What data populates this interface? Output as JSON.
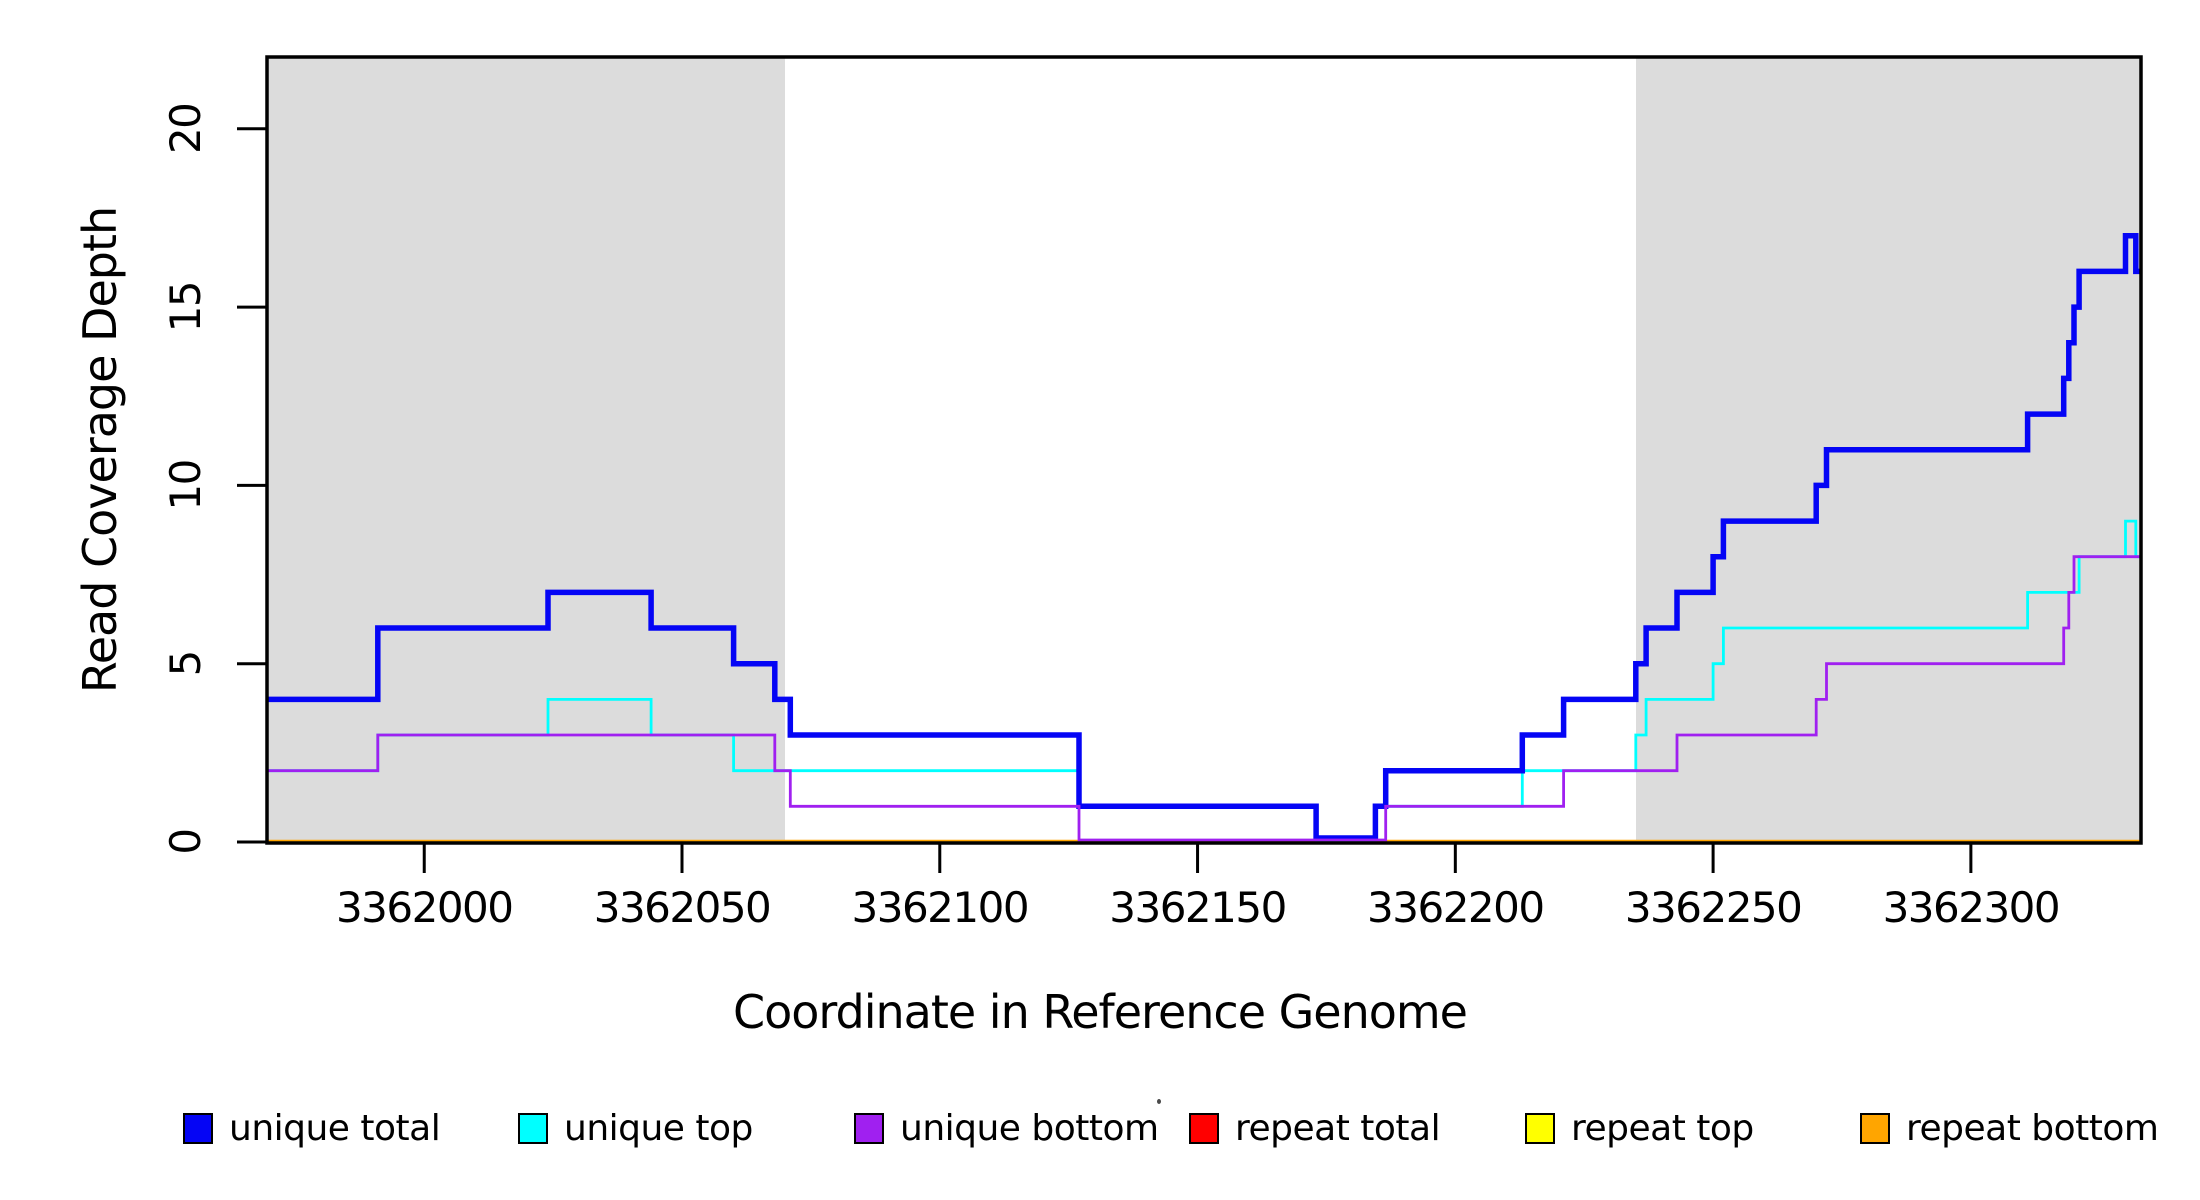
{
  "chart_data": {
    "type": "line",
    "subtype": "step-coverage",
    "title": "",
    "xlabel": "Coordinate in Reference Genome",
    "ylabel": "Read Coverage Depth",
    "xlim": [
      3361969.5,
      3362333
    ],
    "ylim": [
      0,
      22
    ],
    "grid": false,
    "x_ticks": [
      3362000,
      3362050,
      3362100,
      3362150,
      3362200,
      3362250,
      3362300
    ],
    "y_ticks": [
      0,
      5,
      10,
      15,
      20
    ],
    "shaded_regions": [
      {
        "name": "repeat-flank-left",
        "x0": 3361969.5,
        "x1": 3362070,
        "color": "#dcdcdc"
      },
      {
        "name": "repeat-flank-right",
        "x0": 3362235,
        "x1": 3362333,
        "color": "#dcdcdc"
      }
    ],
    "series": [
      {
        "name": "repeat total",
        "color": "#ff0000",
        "width": 3,
        "zero_dy": 0,
        "points": [
          [
            3361969.5,
            0
          ]
        ]
      },
      {
        "name": "repeat top",
        "color": "#ffff00",
        "width": 3,
        "zero_dy": 0,
        "points": [
          [
            3361969.5,
            0
          ]
        ]
      },
      {
        "name": "repeat bottom",
        "color": "#ffa500",
        "width": 4.5,
        "zero_dy": 0,
        "points": [
          [
            3361969.5,
            0
          ]
        ]
      },
      {
        "name": "unique top",
        "color": "#00ffff",
        "width": 2.8,
        "zero_dy": -2,
        "points": [
          [
            3361969.5,
            2
          ],
          [
            3361991,
            3
          ],
          [
            3362024,
            4
          ],
          [
            3362044,
            3
          ],
          [
            3362060,
            2
          ],
          [
            3362127,
            1
          ],
          [
            3362173,
            0
          ],
          [
            3362184.5,
            1
          ],
          [
            3362213,
            2
          ],
          [
            3362235,
            3
          ],
          [
            3362237,
            4
          ],
          [
            3362250,
            5
          ],
          [
            3362252,
            6
          ],
          [
            3362311,
            7
          ],
          [
            3362321,
            8
          ],
          [
            3362330,
            9
          ],
          [
            3362332,
            8
          ]
        ]
      },
      {
        "name": "unique total",
        "color": "#0505f5",
        "width": 5.5,
        "zero_dy": -4,
        "points": [
          [
            3361969.5,
            4
          ],
          [
            3361991,
            6
          ],
          [
            3362024,
            7
          ],
          [
            3362044,
            6
          ],
          [
            3362060,
            5
          ],
          [
            3362068,
            4
          ],
          [
            3362071,
            3
          ],
          [
            3362127,
            1
          ],
          [
            3362173,
            0
          ],
          [
            3362184.5,
            1
          ],
          [
            3362186.5,
            2
          ],
          [
            3362213,
            3
          ],
          [
            3362221,
            4
          ],
          [
            3362235,
            5
          ],
          [
            3362237,
            6
          ],
          [
            3362243,
            7
          ],
          [
            3362250,
            8
          ],
          [
            3362252,
            9
          ],
          [
            3362270,
            10
          ],
          [
            3362272,
            11
          ],
          [
            3362311,
            12
          ],
          [
            3362318,
            13
          ],
          [
            3362319,
            14
          ],
          [
            3362320,
            15
          ],
          [
            3362321,
            16
          ],
          [
            3362330,
            17
          ],
          [
            3362332,
            16
          ]
        ]
      },
      {
        "name": "unique bottom",
        "color": "#a020f0",
        "width": 2.8,
        "zero_dy": -2,
        "points": [
          [
            3361969.5,
            2
          ],
          [
            3361991,
            3
          ],
          [
            3362068,
            2
          ],
          [
            3362071,
            1
          ],
          [
            3362127,
            0
          ],
          [
            3362186.5,
            1
          ],
          [
            3362221,
            2
          ],
          [
            3362243,
            3
          ],
          [
            3362270,
            4
          ],
          [
            3362272,
            5
          ],
          [
            3362318,
            6
          ],
          [
            3362319,
            7
          ],
          [
            3362320,
            8
          ]
        ]
      }
    ],
    "legend": [
      {
        "label": "unique total",
        "color": "#0505f5"
      },
      {
        "label": "unique top",
        "color": "#00ffff"
      },
      {
        "label": "unique bottom",
        "color": "#a020f0"
      },
      {
        "label": "repeat total",
        "color": "#ff0000"
      },
      {
        "label": "repeat top",
        "color": "#ffff00"
      },
      {
        "label": "repeat bottom",
        "color": "#ffa500"
      }
    ],
    "legend_position": "bottom"
  }
}
